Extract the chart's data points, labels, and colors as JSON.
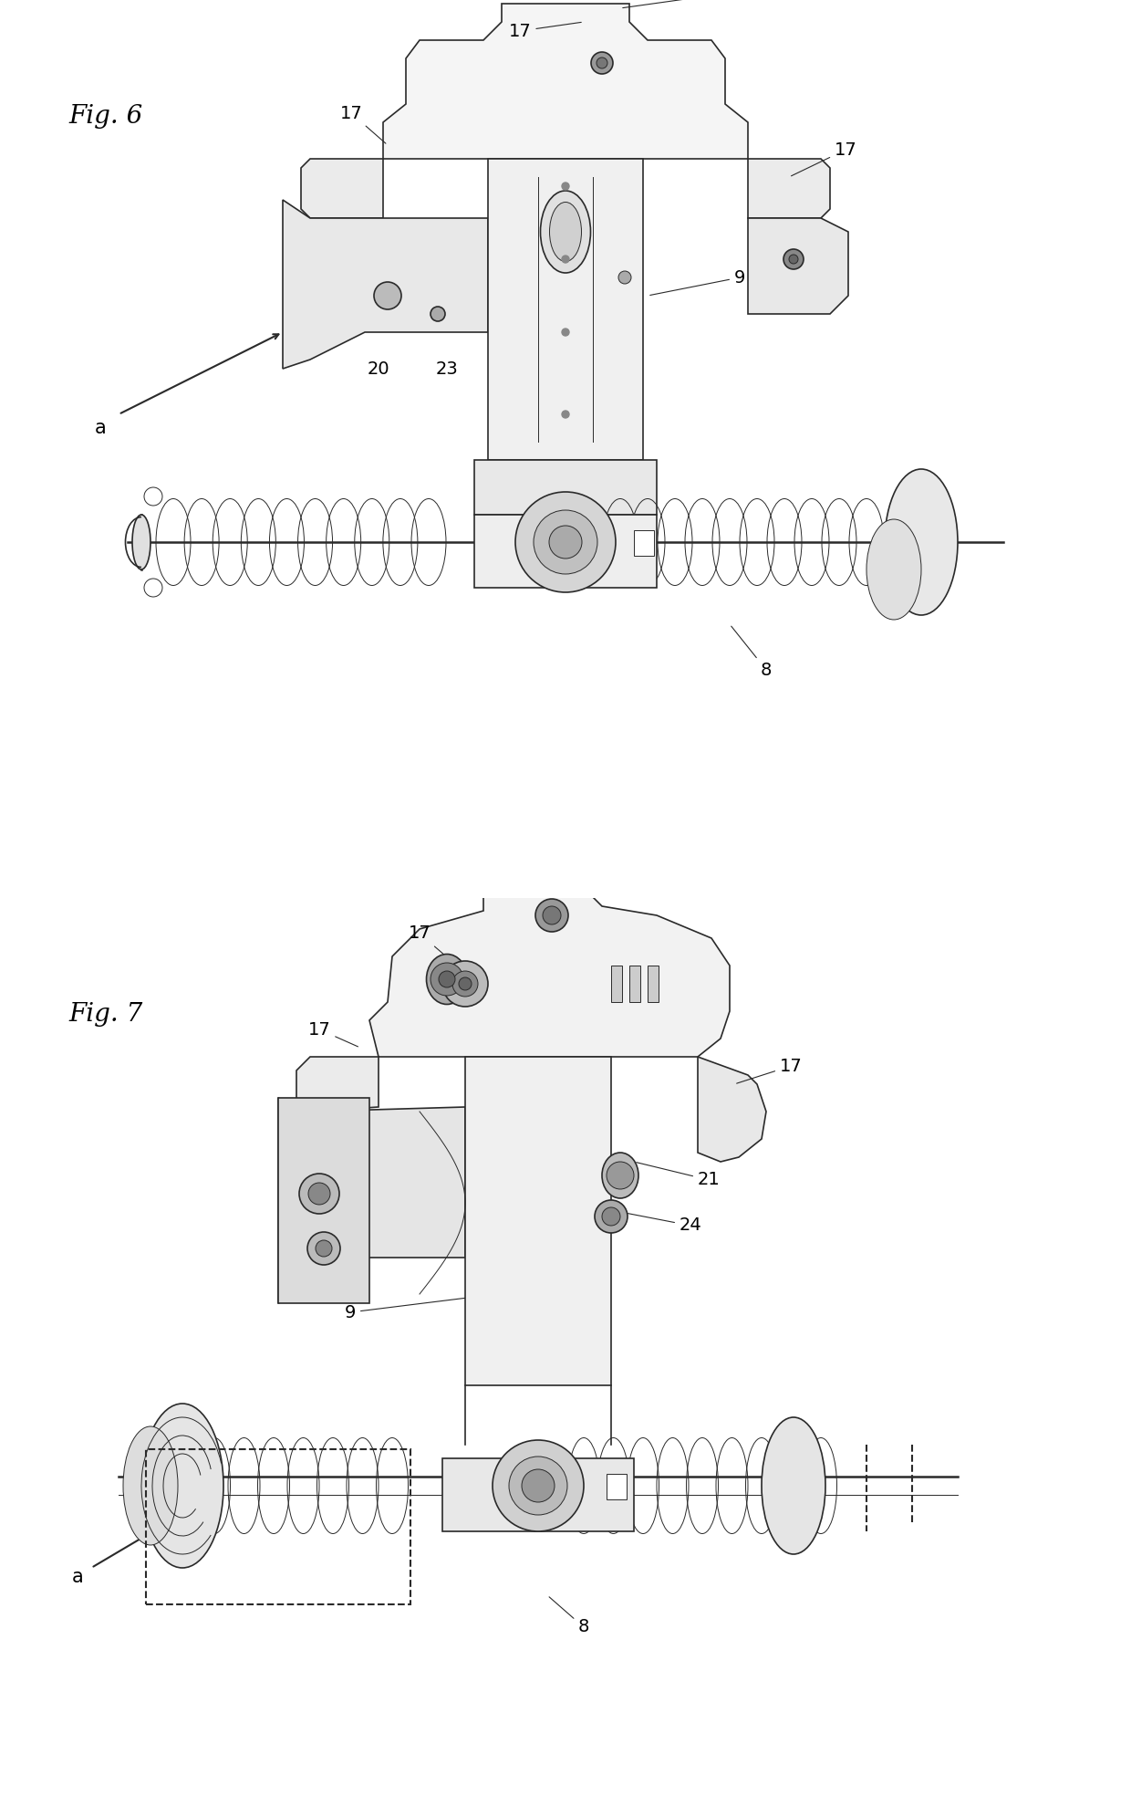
{
  "fig_width": 12.4,
  "fig_height": 19.68,
  "dpi": 100,
  "bg_color": "#ffffff",
  "line_color": "#2a2a2a",
  "fig6_label": "Fig. 6",
  "fig7_label": "Fig. 7",
  "label_fontsize": 20,
  "annot_fontsize": 14,
  "lw_main": 1.2,
  "lw_thin": 0.7,
  "lw_thick": 1.8
}
